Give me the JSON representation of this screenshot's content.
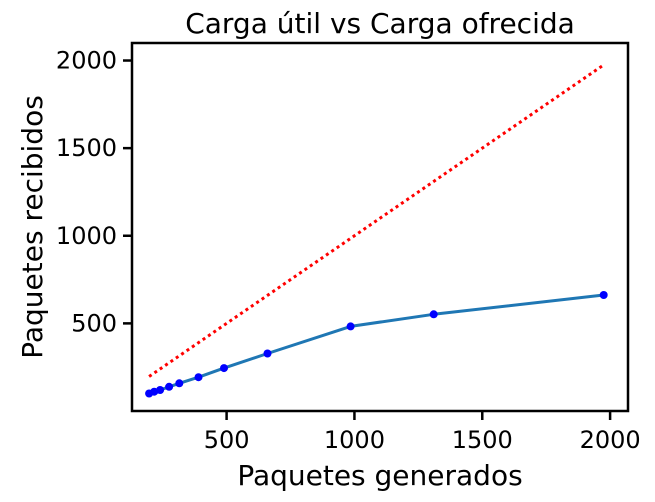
{
  "chart_data": {
    "type": "line",
    "title": "Carga útil vs Carga ofrecida",
    "xlabel": "Paquetes generados",
    "ylabel": "Paquetes recibidos",
    "xlim": [
      130,
      2070
    ],
    "ylim": [
      0,
      2100
    ],
    "xticks": [
      500,
      1000,
      1500,
      2000
    ],
    "yticks": [
      500,
      1000,
      1500,
      2000
    ],
    "grid": false,
    "series": [
      {
        "style": "line-with-markers",
        "color": "#1f77b4",
        "marker_color": "#0000ff",
        "x": [
          197,
          217,
          240,
          275,
          315,
          390,
          490,
          660,
          985,
          1310,
          1975
        ],
        "y": [
          100,
          110,
          120,
          138,
          158,
          193,
          245,
          328,
          483,
          552,
          662
        ]
      },
      {
        "style": "dotted",
        "color": "#ff0000",
        "x": [
          197,
          1975
        ],
        "y": [
          197,
          1975
        ]
      }
    ]
  }
}
